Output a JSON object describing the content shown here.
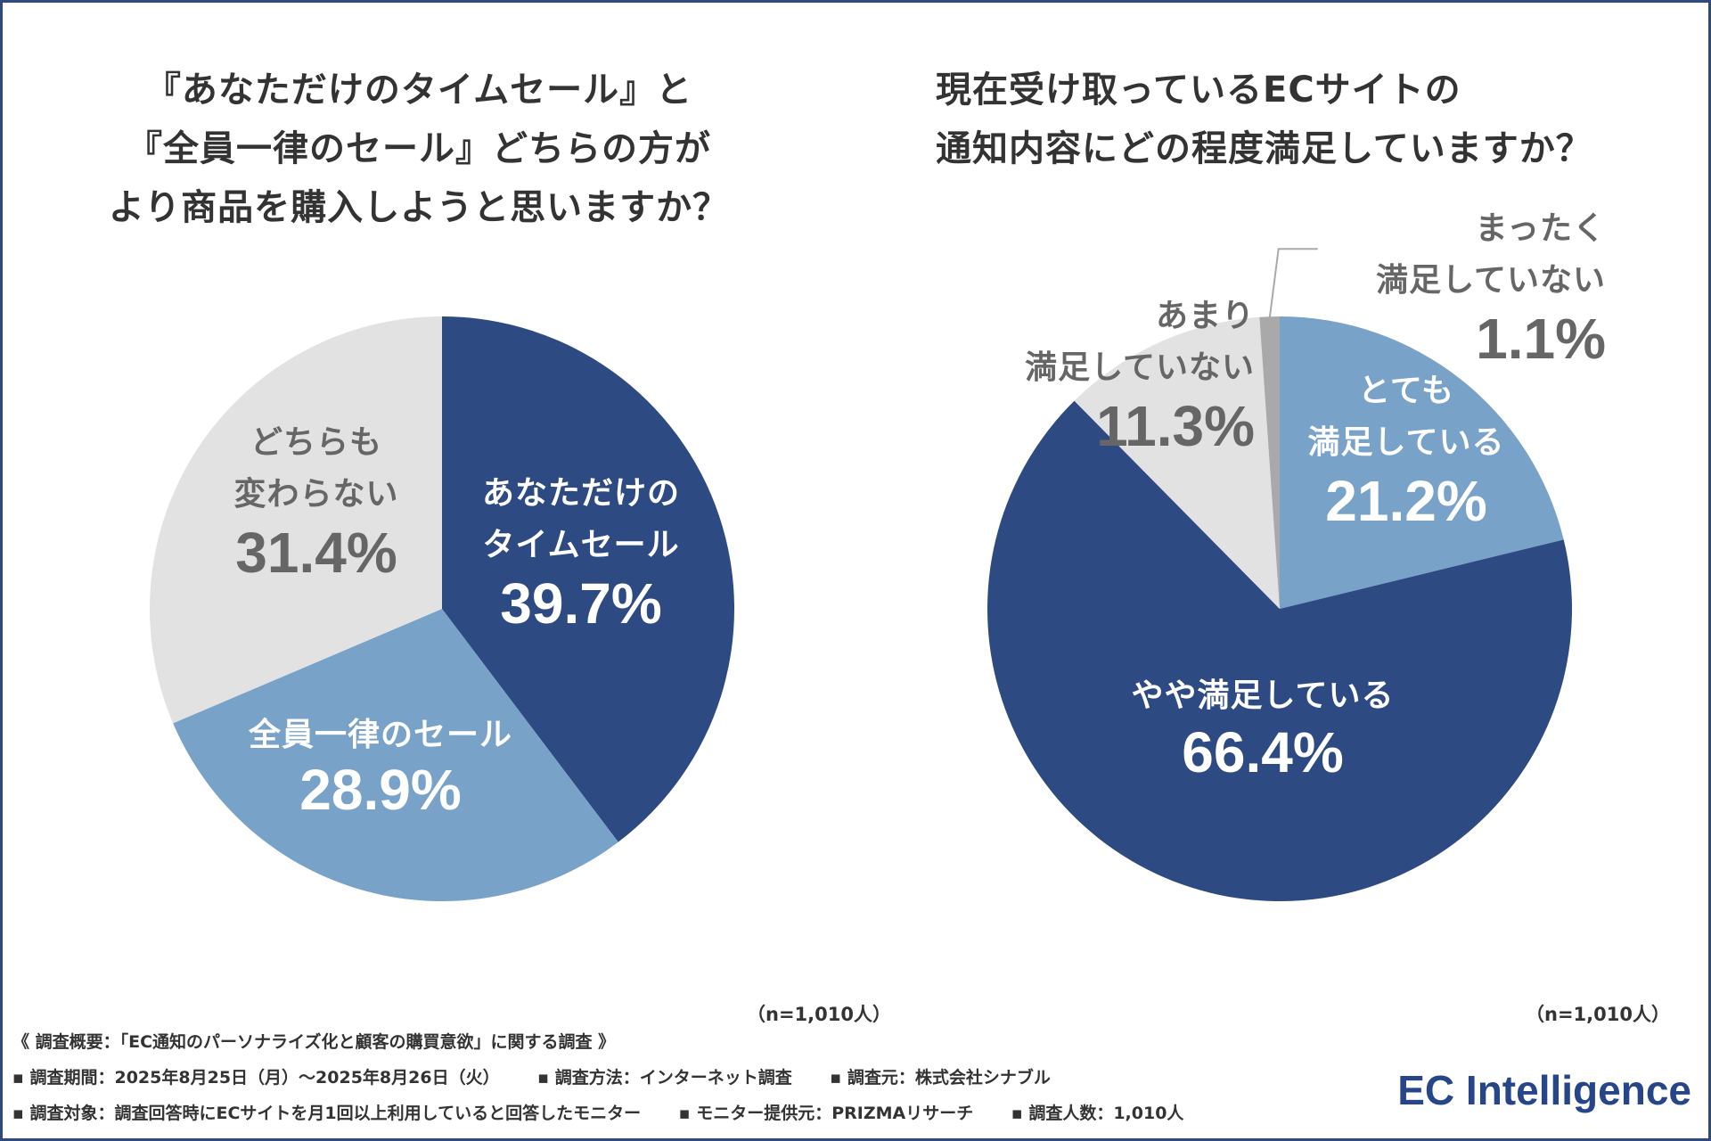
{
  "colors": {
    "dark_blue": "#2e4a82",
    "light_blue": "#78a2c8",
    "light_gray": "#e2e2e2",
    "mid_gray": "#a9a9a9",
    "dark_text": "#666666"
  },
  "chart_data": [
    {
      "type": "pie",
      "title": "『あなただけのタイムセール』と『全員一律のセール』どちらの方がより商品を購入しようと思いますか？",
      "title_lines": [
        "『あなただけのタイムセール』と",
        "『全員一律のセール』どちらの方が",
        "より商品を購入しようと思いますか？"
      ],
      "n_label": "（n=1,010人）",
      "slices": [
        {
          "label_lines": [
            "あなただけの",
            "タイムセール"
          ],
          "value": 39.7,
          "value_label": "39.7%",
          "color": "#2e4a82",
          "text_color": "#ffffff"
        },
        {
          "label_lines": [
            "全員一律のセール"
          ],
          "value": 28.9,
          "value_label": "28.9%",
          "color": "#78a2c8",
          "text_color": "#ffffff"
        },
        {
          "label_lines": [
            "どちらも",
            "変わらない"
          ],
          "value": 31.4,
          "value_label": "31.4%",
          "color": "#e2e2e2",
          "text_color": "#666666"
        }
      ]
    },
    {
      "type": "pie",
      "title": "現在受け取っているECサイトの通知内容にどの程度満足していますか？",
      "title_lines": [
        "現在受け取っているECサイトの",
        "通知内容にどの程度満足していますか？"
      ],
      "n_label": "（n=1,010人）",
      "slices": [
        {
          "label_lines": [
            "とても",
            "満足している"
          ],
          "value": 21.2,
          "value_label": "21.2%",
          "color": "#78a2c8",
          "text_color": "#ffffff"
        },
        {
          "label_lines": [
            "やや満足している"
          ],
          "value": 66.4,
          "value_label": "66.4%",
          "color": "#2e4a82",
          "text_color": "#ffffff"
        },
        {
          "label_lines": [
            "あまり",
            "満足していない"
          ],
          "value": 11.3,
          "value_label": "11.3%",
          "color": "#e2e2e2",
          "text_color": "#666666"
        },
        {
          "label_lines": [
            "まったく",
            "満足していない"
          ],
          "value": 1.1,
          "value_label": "1.1%",
          "color": "#a9a9a9",
          "text_color": "#666666"
        }
      ]
    }
  ],
  "footer": {
    "survey": "《 調査概要：「EC通知のパーソナライズ化と顧客の購買意欲」に関する調査 》",
    "period": "▪ 調査期間：2025年8月25日（月）〜2025年8月26日（火）",
    "method": "▪ 調査方法：インターネット調査",
    "source": "▪ 調査元：株式会社シナブル",
    "target": "▪ 調査対象：調査回答時にECサイトを月1回以上利用していると回答したモニター",
    "provider": "▪ モニター提供元：PRIZMAリサーチ",
    "count": "▪ 調査人数：1,010人"
  },
  "logo": "EC Intelligence"
}
